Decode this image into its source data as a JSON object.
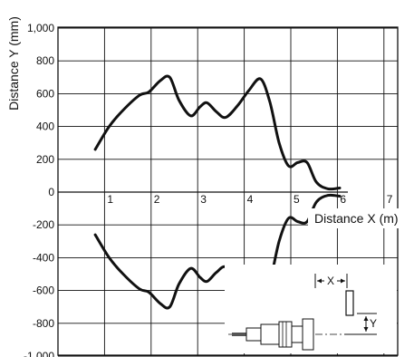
{
  "chart_data": {
    "type": "line",
    "xlabel": "Distance X (m)",
    "ylabel": "Distance Y (mm)",
    "xlim": [
      0,
      7
    ],
    "ylim": [
      -1000,
      1000
    ],
    "x_ticks": [
      "1",
      "2",
      "3",
      "4",
      "5",
      "6",
      "7"
    ],
    "y_ticks": [
      "1,000",
      "800",
      "600",
      "400",
      "200",
      "0",
      "-200",
      "-400",
      "-600",
      "-800",
      "-1,000"
    ],
    "grid": true,
    "series": [
      {
        "values": [
          [
            0.8,
            260
          ],
          [
            1.1,
            400
          ],
          [
            1.4,
            500
          ],
          [
            1.75,
            590
          ],
          [
            1.95,
            610
          ],
          [
            2.2,
            680
          ],
          [
            2.4,
            700
          ],
          [
            2.6,
            560
          ],
          [
            2.85,
            465
          ],
          [
            3.05,
            520
          ],
          [
            3.2,
            545
          ],
          [
            3.4,
            490
          ],
          [
            3.6,
            455
          ],
          [
            3.85,
            525
          ],
          [
            4.1,
            620
          ],
          [
            4.35,
            690
          ],
          [
            4.55,
            550
          ],
          [
            4.75,
            300
          ],
          [
            4.95,
            160
          ],
          [
            5.15,
            180
          ],
          [
            5.35,
            180
          ],
          [
            5.55,
            60
          ],
          [
            5.8,
            20
          ],
          [
            6.05,
            25
          ]
        ]
      },
      {
        "values": [
          [
            0.8,
            -260
          ],
          [
            1.1,
            -400
          ],
          [
            1.4,
            -500
          ],
          [
            1.75,
            -590
          ],
          [
            1.95,
            -610
          ],
          [
            2.2,
            -680
          ],
          [
            2.4,
            -700
          ],
          [
            2.6,
            -560
          ],
          [
            2.85,
            -465
          ],
          [
            3.05,
            -520
          ],
          [
            3.2,
            -545
          ],
          [
            3.4,
            -490
          ],
          [
            3.6,
            -455
          ],
          [
            3.85,
            -525
          ],
          [
            4.1,
            -620
          ],
          [
            4.35,
            -690
          ],
          [
            4.55,
            -550
          ],
          [
            4.75,
            -300
          ],
          [
            4.95,
            -160
          ],
          [
            5.15,
            -180
          ],
          [
            5.35,
            -180
          ],
          [
            5.55,
            -60
          ],
          [
            5.8,
            -20
          ],
          [
            6.05,
            -25
          ]
        ]
      }
    ],
    "inset": {
      "x_label": "X",
      "y_label": "Y"
    }
  }
}
